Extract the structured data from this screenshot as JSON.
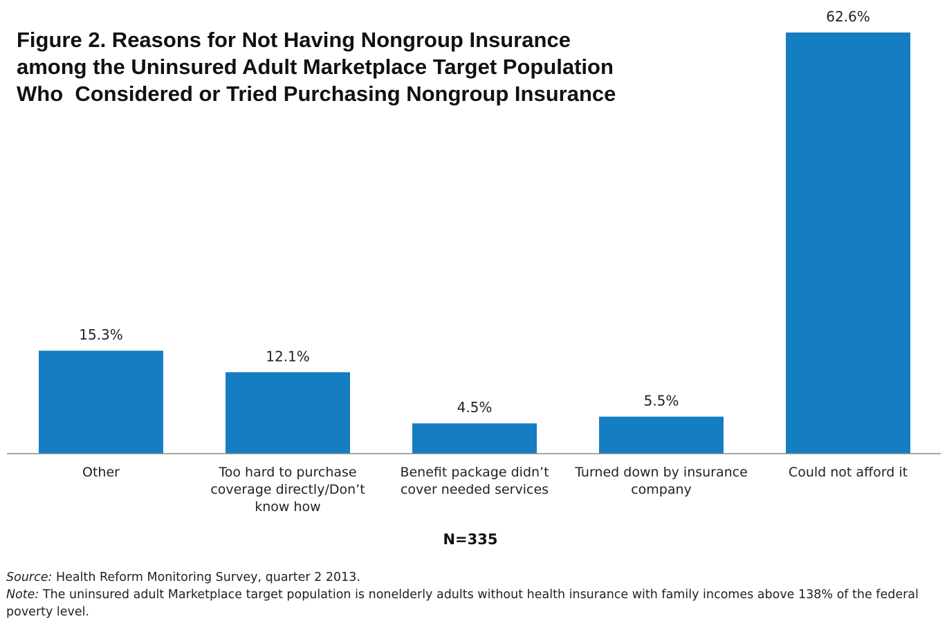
{
  "chart_data": {
    "type": "bar",
    "title": "Figure 2. Reasons for Not Having Nongroup Insurance among the Uninsured Adult Marketplace Target Population Who  Considered or Tried Purchasing Nongroup Insurance",
    "title_lines": [
      "Figure 2. Reasons for Not Having Nongroup Insurance",
      "among the Uninsured Adult Marketplace Target Population",
      "Who  Considered or Tried Purchasing Nongroup Insurance"
    ],
    "categories": [
      "Other",
      "Too hard to purchase coverage directly/Don’t know how",
      "Benefit package didn’t cover needed services",
      "Turned down by insurance company",
      "Could not afford it"
    ],
    "values": [
      15.3,
      12.1,
      4.5,
      5.5,
      62.6
    ],
    "data_labels": [
      "15.3%",
      "12.1%",
      "4.5%",
      "5.5%",
      "62.6%"
    ],
    "ylim": [
      0,
      62.6
    ],
    "bar_color": "#157dc2",
    "axis_color": "#888888",
    "grid": false,
    "legend": "none",
    "xlabel": "",
    "ylabel": ""
  },
  "sample_size": "N=335",
  "footnotes": {
    "source_label": "Source:",
    "source_text": " Health Reform Monitoring Survey, quarter 2 2013.",
    "note_label": "Note:",
    "note_text": " The uninsured adult  Marketplace target population is nonelderly adults without health insurance with family incomes above 138% of the federal poverty level."
  }
}
